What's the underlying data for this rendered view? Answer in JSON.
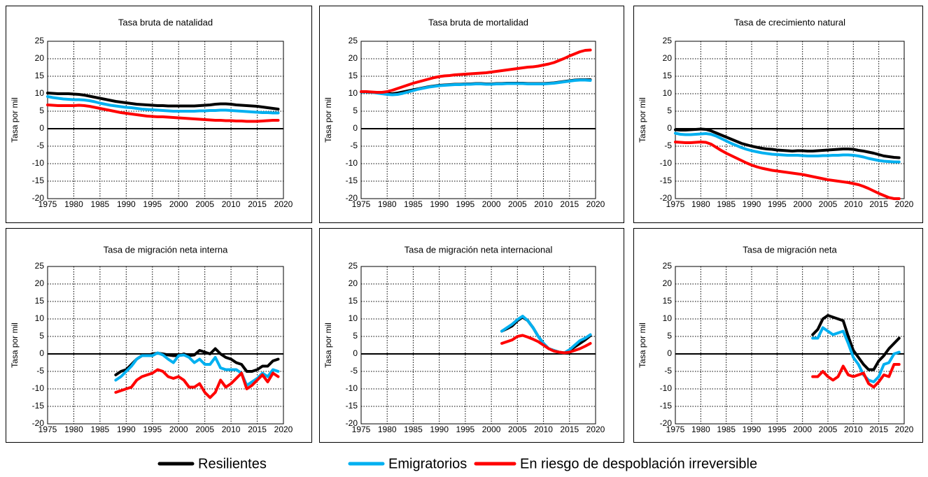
{
  "legend": {
    "series": [
      {
        "name": "Resilientes",
        "color": "#000000"
      },
      {
        "name": "Emigratorios",
        "color": "#00b0f0"
      },
      {
        "name": "En riesgo de despoblación irreversible",
        "color": "#ff0000"
      }
    ]
  },
  "chart_data": [
    {
      "type": "line",
      "title": "Tasa bruta de natalidad",
      "y_label": "Tasa por mil",
      "grid": true,
      "xlim": [
        1975,
        2020
      ],
      "xticks": [
        1975,
        1980,
        1985,
        1990,
        1995,
        2000,
        2005,
        2010,
        2015,
        2020
      ],
      "ylim": [
        -20,
        25
      ],
      "yticks": [
        -20,
        -15,
        -10,
        -5,
        0,
        5,
        10,
        15,
        20,
        25
      ],
      "x": [
        1975,
        1976,
        1977,
        1978,
        1979,
        1980,
        1981,
        1982,
        1983,
        1984,
        1985,
        1986,
        1987,
        1988,
        1989,
        1990,
        1991,
        1992,
        1993,
        1994,
        1995,
        1996,
        1997,
        1998,
        1999,
        2000,
        2001,
        2002,
        2003,
        2004,
        2005,
        2006,
        2007,
        2008,
        2009,
        2010,
        2011,
        2012,
        2013,
        2014,
        2015,
        2016,
        2017,
        2018,
        2019
      ],
      "series": [
        {
          "values": [
            10.2,
            10.1,
            10,
            10,
            10,
            9.9,
            9.8,
            9.6,
            9.3,
            9,
            8.7,
            8.4,
            8.1,
            7.8,
            7.6,
            7.4,
            7.2,
            7,
            6.9,
            6.8,
            6.7,
            6.6,
            6.6,
            6.5,
            6.5,
            6.5,
            6.5,
            6.5,
            6.5,
            6.6,
            6.7,
            6.8,
            7,
            7.1,
            7.1,
            7,
            6.8,
            6.7,
            6.6,
            6.5,
            6.4,
            6.2,
            6,
            5.8,
            5.6
          ]
        },
        {
          "values": [
            9.2,
            8.9,
            8.7,
            8.5,
            8.4,
            8.3,
            8.3,
            8.2,
            8,
            7.7,
            7.3,
            7,
            6.7,
            6.5,
            6.3,
            6.1,
            6,
            5.8,
            5.6,
            5.5,
            5.4,
            5.3,
            5.2,
            5.1,
            5,
            5,
            5,
            5,
            5,
            5.1,
            5.1,
            5.2,
            5.2,
            5.3,
            5.3,
            5.2,
            5.1,
            5,
            4.9,
            4.8,
            4.7,
            4.6,
            4.6,
            4.5,
            4.5
          ]
        },
        {
          "values": [
            6.8,
            6.7,
            6.6,
            6.6,
            6.6,
            6.6,
            6.7,
            6.6,
            6.4,
            6.1,
            5.8,
            5.5,
            5.2,
            4.9,
            4.6,
            4.4,
            4.2,
            4,
            3.8,
            3.6,
            3.5,
            3.4,
            3.4,
            3.3,
            3.2,
            3.1,
            3,
            2.9,
            2.8,
            2.7,
            2.6,
            2.5,
            2.4,
            2.4,
            2.3,
            2.3,
            2.2,
            2.2,
            2.1,
            2.1,
            2.1,
            2.2,
            2.3,
            2.4,
            2.4
          ]
        }
      ]
    },
    {
      "type": "line",
      "title": "Tasa bruta de mortalidad",
      "y_label": "Tasa por mil",
      "grid": true,
      "xlim": [
        1975,
        2020
      ],
      "xticks": [
        1975,
        1980,
        1985,
        1990,
        1995,
        2000,
        2005,
        2010,
        2015,
        2020
      ],
      "ylim": [
        -20,
        25
      ],
      "yticks": [
        -20,
        -15,
        -10,
        -5,
        0,
        5,
        10,
        15,
        20,
        25
      ],
      "x": [
        1975,
        1976,
        1977,
        1978,
        1979,
        1980,
        1981,
        1982,
        1983,
        1984,
        1985,
        1986,
        1987,
        1988,
        1989,
        1990,
        1991,
        1992,
        1993,
        1994,
        1995,
        1996,
        1997,
        1998,
        1999,
        2000,
        2001,
        2002,
        2003,
        2004,
        2005,
        2006,
        2007,
        2008,
        2009,
        2010,
        2011,
        2012,
        2013,
        2014,
        2015,
        2016,
        2017,
        2018,
        2019
      ],
      "series": [
        {
          "values": [
            10.5,
            10.5,
            10.4,
            10.3,
            10.2,
            10,
            10,
            10.2,
            10.5,
            10.8,
            11.1,
            11.4,
            11.7,
            12,
            12.2,
            12.4,
            12.5,
            12.6,
            12.7,
            12.7,
            12.8,
            12.8,
            12.9,
            12.9,
            12.8,
            12.8,
            12.9,
            12.9,
            13,
            13,
            13,
            13,
            12.9,
            12.9,
            12.9,
            12.9,
            13,
            13.1,
            13.3,
            13.5,
            13.7,
            13.9,
            14,
            14,
            14
          ]
        },
        {
          "values": [
            10.5,
            10.5,
            10.4,
            10.2,
            10,
            9.8,
            9.7,
            9.8,
            10.1,
            10.5,
            10.9,
            11.3,
            11.6,
            11.9,
            12.1,
            12.3,
            12.4,
            12.5,
            12.6,
            12.6,
            12.7,
            12.7,
            12.8,
            12.8,
            12.7,
            12.7,
            12.8,
            12.8,
            12.9,
            12.9,
            12.9,
            12.9,
            12.8,
            12.8,
            12.8,
            12.8,
            12.9,
            13,
            13.2,
            13.4,
            13.6,
            13.8,
            13.9,
            13.9,
            13.8
          ]
        },
        {
          "values": [
            10.6,
            10.6,
            10.5,
            10.4,
            10.4,
            10.6,
            11,
            11.5,
            12,
            12.5,
            13,
            13.4,
            13.8,
            14.2,
            14.6,
            14.9,
            15.1,
            15.2,
            15.4,
            15.5,
            15.6,
            15.7,
            15.8,
            15.9,
            16,
            16.2,
            16.4,
            16.6,
            16.8,
            17,
            17.2,
            17.4,
            17.6,
            17.7,
            17.9,
            18.2,
            18.5,
            18.9,
            19.5,
            20.1,
            20.8,
            21.4,
            22,
            22.4,
            22.5
          ]
        }
      ]
    },
    {
      "type": "line",
      "title": "Tasa de crecimiento natural",
      "y_label": "Tasa por mil",
      "grid": true,
      "xlim": [
        1975,
        2020
      ],
      "xticks": [
        1975,
        1980,
        1985,
        1990,
        1995,
        2000,
        2005,
        2010,
        2015,
        2020
      ],
      "ylim": [
        -20,
        25
      ],
      "yticks": [
        -20,
        -15,
        -10,
        -5,
        0,
        5,
        10,
        15,
        20,
        25
      ],
      "x": [
        1975,
        1976,
        1977,
        1978,
        1979,
        1980,
        1981,
        1982,
        1983,
        1984,
        1985,
        1986,
        1987,
        1988,
        1989,
        1990,
        1991,
        1992,
        1993,
        1994,
        1995,
        1996,
        1997,
        1998,
        1999,
        2000,
        2001,
        2002,
        2003,
        2004,
        2005,
        2006,
        2007,
        2008,
        2009,
        2010,
        2011,
        2012,
        2013,
        2014,
        2015,
        2016,
        2017,
        2018,
        2019
      ],
      "series": [
        {
          "values": [
            -0.3,
            -0.4,
            -0.4,
            -0.3,
            -0.2,
            -0.1,
            -0.2,
            -0.6,
            -1.2,
            -1.8,
            -2.4,
            -3,
            -3.6,
            -4.2,
            -4.6,
            -5,
            -5.3,
            -5.6,
            -5.8,
            -5.9,
            -6.1,
            -6.2,
            -6.3,
            -6.4,
            -6.3,
            -6.3,
            -6.4,
            -6.4,
            -6.3,
            -6.2,
            -6.1,
            -6,
            -5.9,
            -5.8,
            -5.8,
            -5.9,
            -6.2,
            -6.4,
            -6.7,
            -7,
            -7.4,
            -7.8,
            -8,
            -8.2,
            -8.3
          ]
        },
        {
          "values": [
            -1.3,
            -1.6,
            -1.7,
            -1.7,
            -1.6,
            -1.5,
            -1.4,
            -1.6,
            -2.1,
            -2.8,
            -3.5,
            -4.2,
            -4.8,
            -5.4,
            -5.9,
            -6.3,
            -6.6,
            -6.9,
            -7.1,
            -7.3,
            -7.4,
            -7.5,
            -7.6,
            -7.6,
            -7.6,
            -7.7,
            -7.8,
            -7.8,
            -7.8,
            -7.7,
            -7.7,
            -7.6,
            -7.6,
            -7.5,
            -7.5,
            -7.6,
            -7.8,
            -8.1,
            -8.5,
            -8.8,
            -9.1,
            -9.3,
            -9.4,
            -9.5,
            -9.5
          ]
        },
        {
          "values": [
            -3.8,
            -3.9,
            -4,
            -4,
            -3.9,
            -3.8,
            -3.9,
            -4.4,
            -5.3,
            -6.2,
            -7,
            -7.7,
            -8.4,
            -9.1,
            -9.8,
            -10.4,
            -10.9,
            -11.3,
            -11.6,
            -11.9,
            -12.1,
            -12.3,
            -12.5,
            -12.7,
            -12.9,
            -13.1,
            -13.4,
            -13.7,
            -14,
            -14.3,
            -14.6,
            -14.8,
            -15,
            -15.2,
            -15.4,
            -15.7,
            -16,
            -16.5,
            -17.1,
            -17.8,
            -18.5,
            -19.1,
            -19.7,
            -20,
            -20
          ]
        }
      ]
    },
    {
      "type": "line",
      "title": "Tasa de migración neta interna",
      "y_label": "Tasa por mil",
      "grid": true,
      "xlim": [
        1975,
        2020
      ],
      "xticks": [
        1975,
        1980,
        1985,
        1990,
        1995,
        2000,
        2005,
        2010,
        2015,
        2020
      ],
      "ylim": [
        -20,
        25
      ],
      "yticks": [
        -20,
        -15,
        -10,
        -5,
        0,
        5,
        10,
        15,
        20,
        25
      ],
      "x": [
        1988,
        1989,
        1990,
        1991,
        1992,
        1993,
        1994,
        1995,
        1996,
        1997,
        1998,
        1999,
        2000,
        2001,
        2002,
        2003,
        2004,
        2005,
        2006,
        2007,
        2008,
        2009,
        2010,
        2011,
        2012,
        2013,
        2014,
        2015,
        2016,
        2017,
        2018,
        2019
      ],
      "series": [
        {
          "values": [
            -6,
            -5,
            -4.5,
            -3,
            -1.5,
            -0.5,
            -0.5,
            0,
            0.2,
            0,
            -0.3,
            -0.5,
            -0.5,
            0,
            -0.5,
            -0.3,
            1,
            0.5,
            0,
            1.5,
            0,
            -1,
            -1.5,
            -2.5,
            -3,
            -5,
            -5,
            -4.5,
            -3.5,
            -3.5,
            -2,
            -1.5
          ]
        },
        {
          "values": [
            -7.5,
            -6.5,
            -5,
            -3.5,
            -1.5,
            -0.5,
            -0.5,
            -0.5,
            0.3,
            -0.3,
            -1.5,
            -2.5,
            -0.5,
            -0.3,
            -1,
            -2.5,
            -1.5,
            -3,
            -3,
            -1,
            -4,
            -4.5,
            -4.5,
            -4.5,
            -5.5,
            -9,
            -8,
            -7,
            -5.5,
            -6.5,
            -4.5,
            -5
          ]
        },
        {
          "values": [
            -11,
            -10.5,
            -10,
            -9.5,
            -7.5,
            -6.5,
            -6,
            -5.5,
            -4.5,
            -5,
            -6.5,
            -7,
            -6.5,
            -7.5,
            -9.5,
            -9.5,
            -8.5,
            -11,
            -12.5,
            -11,
            -7.5,
            -9.5,
            -8.5,
            -7,
            -5.5,
            -10,
            -9,
            -7.5,
            -6,
            -8,
            -5.5,
            -6.5
          ]
        }
      ]
    },
    {
      "type": "line",
      "title": "Tasa de migración neta internacional",
      "y_label": "Tasa por mil",
      "grid": true,
      "xlim": [
        1975,
        2020
      ],
      "xticks": [
        1975,
        1980,
        1985,
        1990,
        1995,
        2000,
        2005,
        2010,
        2015,
        2020
      ],
      "ylim": [
        -20,
        25
      ],
      "yticks": [
        -20,
        -15,
        -10,
        -5,
        0,
        5,
        10,
        15,
        20,
        25
      ],
      "x": [
        2002,
        2003,
        2004,
        2005,
        2006,
        2007,
        2008,
        2009,
        2010,
        2011,
        2012,
        2013,
        2014,
        2015,
        2016,
        2017,
        2018,
        2019
      ],
      "series": [
        {
          "values": [
            6.5,
            7.2,
            8,
            9.5,
            10.5,
            9.5,
            7.5,
            5,
            3,
            1.5,
            1,
            0.5,
            0.3,
            1,
            2,
            3,
            4,
            5.2
          ]
        },
        {
          "values": [
            6.5,
            7.5,
            8.5,
            9.8,
            10.8,
            9.5,
            7.5,
            5,
            3,
            1.5,
            1,
            0.5,
            0.3,
            1.2,
            2.5,
            3.8,
            4.5,
            5.5
          ]
        },
        {
          "values": [
            3,
            3.5,
            4,
            5,
            5.3,
            4.8,
            4.2,
            3.5,
            2.5,
            1.5,
            0.8,
            0.5,
            0.3,
            0.5,
            1,
            1.5,
            2.2,
            3
          ]
        }
      ]
    },
    {
      "type": "line",
      "title": "Tasa de migración neta",
      "y_label": "Tasa por mil",
      "grid": true,
      "xlim": [
        1975,
        2020
      ],
      "xticks": [
        1975,
        1980,
        1985,
        1990,
        1995,
        2000,
        2005,
        2010,
        2015,
        2020
      ],
      "ylim": [
        -20,
        25
      ],
      "yticks": [
        -20,
        -15,
        -10,
        -5,
        0,
        5,
        10,
        15,
        20,
        25
      ],
      "x": [
        2002,
        2003,
        2004,
        2005,
        2006,
        2007,
        2008,
        2009,
        2010,
        2011,
        2012,
        2013,
        2014,
        2015,
        2016,
        2017,
        2018,
        2019
      ],
      "series": [
        {
          "values": [
            5.5,
            7,
            10,
            11,
            10.5,
            10,
            9.5,
            5,
            1,
            -1,
            -3,
            -4.5,
            -4.5,
            -2,
            -0.5,
            1.5,
            3,
            4.5
          ]
        },
        {
          "values": [
            4.5,
            4.5,
            7.5,
            6.5,
            5.5,
            6,
            6.5,
            3,
            -1,
            -3,
            -6,
            -7.5,
            -8,
            -6.5,
            -3,
            -2.5,
            0,
            0.5
          ]
        },
        {
          "values": [
            -6.5,
            -6.5,
            -5,
            -6.5,
            -7.5,
            -6.5,
            -3.5,
            -6,
            -6.5,
            -6,
            -5.5,
            -8.5,
            -9.5,
            -8,
            -6,
            -6.5,
            -3,
            -3
          ]
        }
      ]
    }
  ]
}
